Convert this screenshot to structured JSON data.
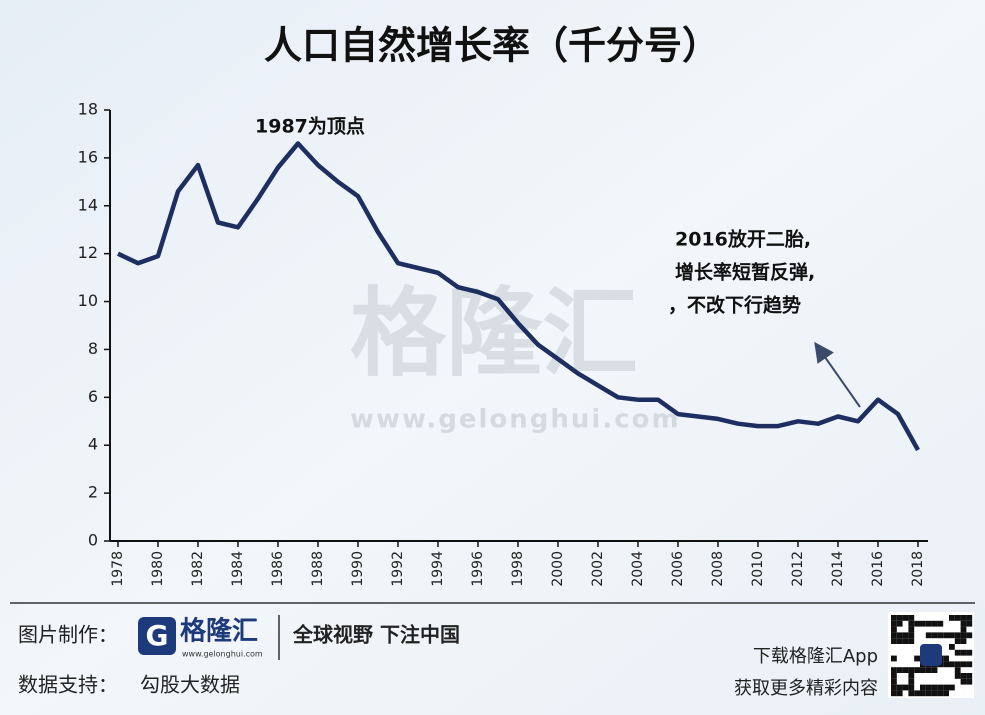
{
  "chart_data": {
    "type": "line",
    "title": "人口自然增长率（千分号）",
    "x": [
      1978,
      1979,
      1980,
      1981,
      1982,
      1983,
      1984,
      1985,
      1986,
      1987,
      1988,
      1989,
      1990,
      1991,
      1992,
      1993,
      1994,
      1995,
      1996,
      1997,
      1998,
      1999,
      2000,
      2001,
      2002,
      2003,
      2004,
      2005,
      2006,
      2007,
      2008,
      2009,
      2010,
      2011,
      2012,
      2013,
      2014,
      2015,
      2016,
      2017,
      2018
    ],
    "values": [
      12.0,
      11.6,
      11.9,
      14.6,
      15.7,
      13.3,
      13.1,
      14.3,
      15.6,
      16.6,
      15.7,
      15.0,
      14.4,
      12.9,
      11.6,
      11.4,
      11.2,
      10.6,
      10.4,
      10.1,
      9.1,
      8.2,
      7.6,
      7.0,
      6.5,
      6.0,
      5.9,
      5.9,
      5.3,
      5.2,
      5.1,
      4.9,
      4.8,
      4.8,
      5.0,
      4.9,
      5.2,
      5.0,
      5.9,
      5.3,
      3.8
    ],
    "color": "#1c2f60",
    "xlim": [
      1977.6,
      2018.5
    ],
    "xticks": [
      1978,
      1980,
      1982,
      1984,
      1986,
      1988,
      1990,
      1992,
      1994,
      1996,
      1998,
      2000,
      2002,
      2004,
      2006,
      2008,
      2010,
      2012,
      2014,
      2016,
      2018
    ],
    "ylim": [
      0,
      18
    ],
    "yticks": [
      0,
      2,
      4,
      6,
      8,
      10,
      12,
      14,
      16,
      18
    ],
    "grid": false,
    "annotations": [
      "1987为顶点",
      "2016放开二胎,",
      "增长率短暂反弹,",
      "，不改下行趋势"
    ]
  },
  "watermark": {
    "name": "格隆汇",
    "url": "www.gelonghui.com"
  },
  "footer": {
    "made_by_label": "图片制作：",
    "brand": "格隆汇",
    "brand_url": "www.gelonghui.com",
    "slogan": "全球视野 下注中国",
    "data_label": "数据支持：",
    "data_source": "勾股大数据",
    "app_line1": "下载格隆汇App",
    "app_line2": "获取更多精彩内容"
  }
}
